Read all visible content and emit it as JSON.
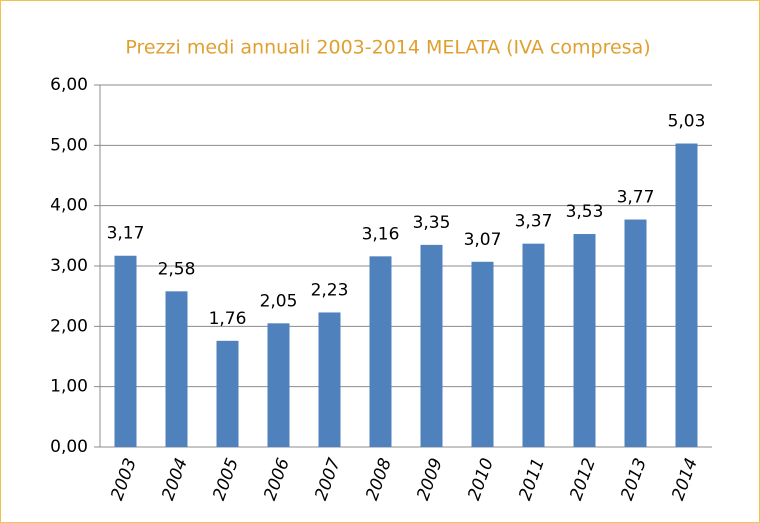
{
  "chart_data": {
    "type": "bar",
    "title": "Prezzi medi annuali 2003-2014 MELATA (IVA compresa)",
    "categories": [
      "2003",
      "2004",
      "2005",
      "2006",
      "2007",
      "2008",
      "2009",
      "2010",
      "2011",
      "2012",
      "2013",
      "2014"
    ],
    "values": [
      3.17,
      2.58,
      1.76,
      2.05,
      2.23,
      3.16,
      3.35,
      3.07,
      3.37,
      3.53,
      3.77,
      5.03
    ],
    "value_labels": [
      "3,17",
      "2,58",
      "1,76",
      "2,05",
      "2,23",
      "3,16",
      "3,35",
      "3,07",
      "3,37",
      "3,53",
      "3,77",
      "5,03"
    ],
    "color": "#4f81bd",
    "ylim": [
      0,
      6
    ],
    "yticks": [
      {
        "value": 0,
        "label": "0,00"
      },
      {
        "value": 1,
        "label": "1,00"
      },
      {
        "value": 2,
        "label": "2,00"
      },
      {
        "value": 3,
        "label": "3,00"
      },
      {
        "value": 4,
        "label": "4,00"
      },
      {
        "value": 5,
        "label": "5,00"
      },
      {
        "value": 6,
        "label": "6,00"
      }
    ],
    "grid": true
  }
}
